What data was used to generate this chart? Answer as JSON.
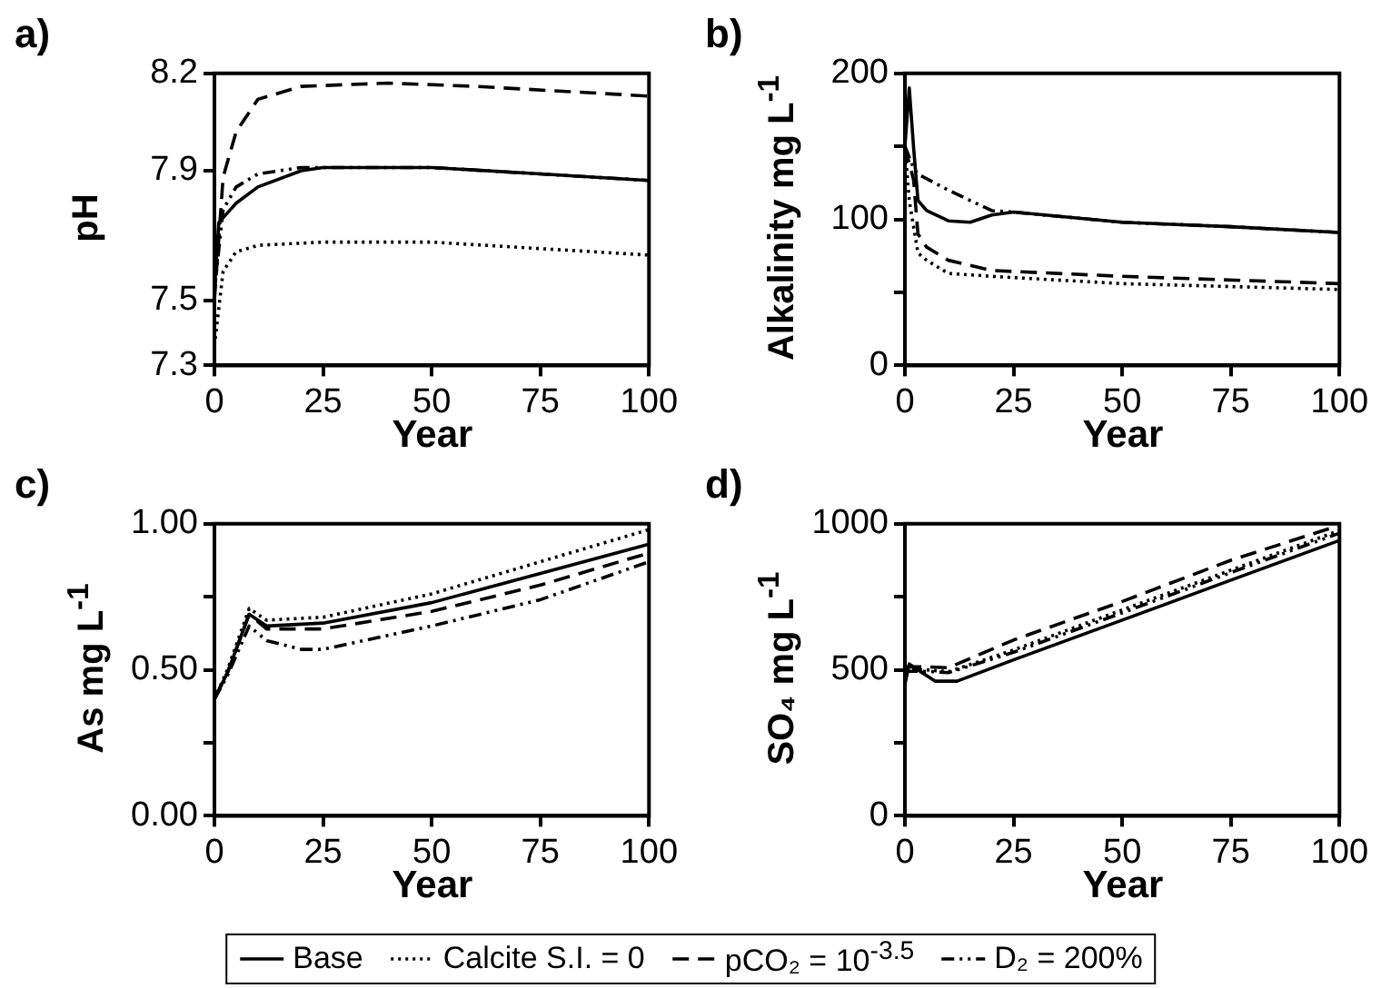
{
  "chart_data": [
    {
      "type": "line",
      "title": "a)",
      "xlabel": "Year",
      "ylabel": "pH",
      "xlim": [
        0,
        100
      ],
      "ylim": [
        7.3,
        8.2
      ],
      "xticks": [
        0,
        25,
        50,
        75,
        100
      ],
      "yticks": [
        7.3,
        7.5,
        7.9,
        8.2
      ],
      "series": [
        {
          "color": "#000000",
          "line_style": "solid",
          "x": [
            0,
            1,
            5,
            10,
            20,
            25,
            50,
            75,
            100
          ],
          "values": [
            7.53,
            7.74,
            7.8,
            7.85,
            7.9,
            7.91,
            7.91,
            7.89,
            7.87
          ]
        },
        {
          "color": "#000000",
          "line_style": "dotted",
          "x": [
            0,
            2,
            5,
            10,
            25,
            50,
            75,
            100
          ],
          "values": [
            7.36,
            7.59,
            7.65,
            7.67,
            7.68,
            7.68,
            7.66,
            7.64
          ]
        },
        {
          "color": "#000000",
          "line_style": "dashed",
          "x": [
            0,
            2,
            5,
            10,
            20,
            40,
            60,
            100
          ],
          "values": [
            7.5,
            7.88,
            8.02,
            8.12,
            8.16,
            8.17,
            8.16,
            8.13
          ]
        },
        {
          "color": "#000000",
          "line_style": "dashdot",
          "x": [
            0,
            2,
            5,
            10,
            20,
            25,
            50,
            75,
            100
          ],
          "values": [
            7.53,
            7.78,
            7.85,
            7.89,
            7.91,
            7.91,
            7.91,
            7.89,
            7.87
          ]
        }
      ]
    },
    {
      "type": "line",
      "title": "b)",
      "xlabel": "Year",
      "ylabel": "Alkalinity mg L$^{-1}$",
      "xlim": [
        0,
        100
      ],
      "ylim": [
        0,
        200
      ],
      "xticks": [
        0,
        25,
        50,
        75,
        100
      ],
      "yticks": [
        0,
        {
          "value": 50,
          "label": null
        },
        100,
        {
          "value": 150,
          "label": null
        },
        200
      ],
      "series": [
        {
          "color": "#000000",
          "line_style": "solid",
          "x": [
            0,
            1,
            2,
            3,
            5,
            10,
            15,
            20,
            25,
            50,
            75,
            100
          ],
          "values": [
            150,
            190,
            149,
            113,
            106,
            99,
            98,
            103,
            105,
            98,
            95,
            91
          ]
        },
        {
          "color": "#000000",
          "line_style": "dotted",
          "x": [
            0,
            1,
            3,
            5,
            10,
            20,
            50,
            100
          ],
          "values": [
            150,
            113,
            77,
            72,
            63,
            61,
            56,
            52
          ]
        },
        {
          "color": "#000000",
          "line_style": "dashed",
          "x": [
            0,
            2,
            3,
            5,
            10,
            20,
            50,
            100
          ],
          "values": [
            150,
            127,
            90,
            81,
            72,
            65,
            61,
            56
          ]
        },
        {
          "color": "#000000",
          "line_style": "dashdot",
          "x": [
            0,
            2,
            3,
            10,
            20,
            25,
            50,
            75,
            100
          ],
          "values": [
            150,
            135,
            131,
            120,
            106,
            105,
            98,
            95,
            91
          ]
        }
      ]
    },
    {
      "type": "line",
      "title": "c)",
      "xlabel": "Year",
      "ylabel": "As mg L$^{-1}$",
      "xlim": [
        0,
        100
      ],
      "ylim": [
        0,
        1
      ],
      "xticks": [
        0,
        25,
        50,
        75,
        100
      ],
      "yticks": [
        {
          "value": 0,
          "label": "0.00"
        },
        {
          "value": 0.25,
          "label": null
        },
        {
          "value": 0.5,
          "label": "0.50"
        },
        {
          "value": 0.75,
          "label": null
        },
        {
          "value": 1,
          "label": "1.00"
        }
      ],
      "series": [
        {
          "color": "#000000",
          "line_style": "solid",
          "x": [
            0,
            3,
            8,
            12,
            25,
            50,
            75,
            100
          ],
          "values": [
            0.4,
            0.49,
            0.69,
            0.65,
            0.66,
            0.73,
            0.83,
            0.93
          ]
        },
        {
          "color": "#000000",
          "line_style": "dotted",
          "x": [
            0,
            3,
            8,
            12,
            25,
            50,
            75,
            100
          ],
          "values": [
            0.4,
            0.5,
            0.71,
            0.67,
            0.68,
            0.76,
            0.87,
            0.98
          ]
        },
        {
          "color": "#000000",
          "line_style": "dashed",
          "x": [
            0,
            3,
            8,
            12,
            25,
            50,
            75,
            100
          ],
          "values": [
            0.4,
            0.49,
            0.69,
            0.64,
            0.64,
            0.7,
            0.79,
            0.9
          ]
        },
        {
          "color": "#000000",
          "line_style": "dashdot",
          "x": [
            0,
            3,
            8,
            12,
            20,
            25,
            50,
            75,
            100
          ],
          "values": [
            0.4,
            0.48,
            0.65,
            0.6,
            0.57,
            0.57,
            0.65,
            0.74,
            0.87
          ]
        }
      ]
    },
    {
      "type": "line",
      "title": "d)",
      "xlabel": "Year",
      "ylabel": "SO₄ mg L$^{-1}$",
      "xlim": [
        0,
        100
      ],
      "ylim": [
        0,
        1000
      ],
      "xticks": [
        0,
        25,
        50,
        75,
        100
      ],
      "yticks": [
        0,
        {
          "value": 250,
          "label": null
        },
        500,
        {
          "value": 750,
          "label": null
        },
        1000
      ],
      "legend": "bottom",
      "series": [
        {
          "name": "Base",
          "color": "#000000",
          "line_style": "solid",
          "x": [
            0,
            1,
            5,
            7,
            12,
            25,
            50,
            75,
            100
          ],
          "values": [
            450,
            520,
            480,
            461,
            461,
            534,
            670,
            807,
            943
          ]
        },
        {
          "name": "Calcite S.I. = 0",
          "color": "#000000",
          "line_style": "dotted",
          "x": [
            0,
            5,
            10,
            25,
            50,
            75,
            100
          ],
          "values": [
            500,
            500,
            493,
            568,
            705,
            841,
            977
          ]
        },
        {
          "name": "pCO₂ = 10$^{-3.5}$",
          "color": "#000000",
          "line_style": "dashed",
          "x": [
            0,
            5,
            10,
            25,
            50,
            75,
            100
          ],
          "values": [
            510,
            510,
            507,
            602,
            734,
            875,
            995
          ]
        },
        {
          "name": "D₂ = 200%",
          "color": "#000000",
          "line_style": "dashdot",
          "x": [
            0,
            5,
            10,
            25,
            50,
            75,
            100
          ],
          "values": [
            495,
            495,
            490,
            560,
            695,
            833,
            968
          ]
        }
      ]
    }
  ]
}
